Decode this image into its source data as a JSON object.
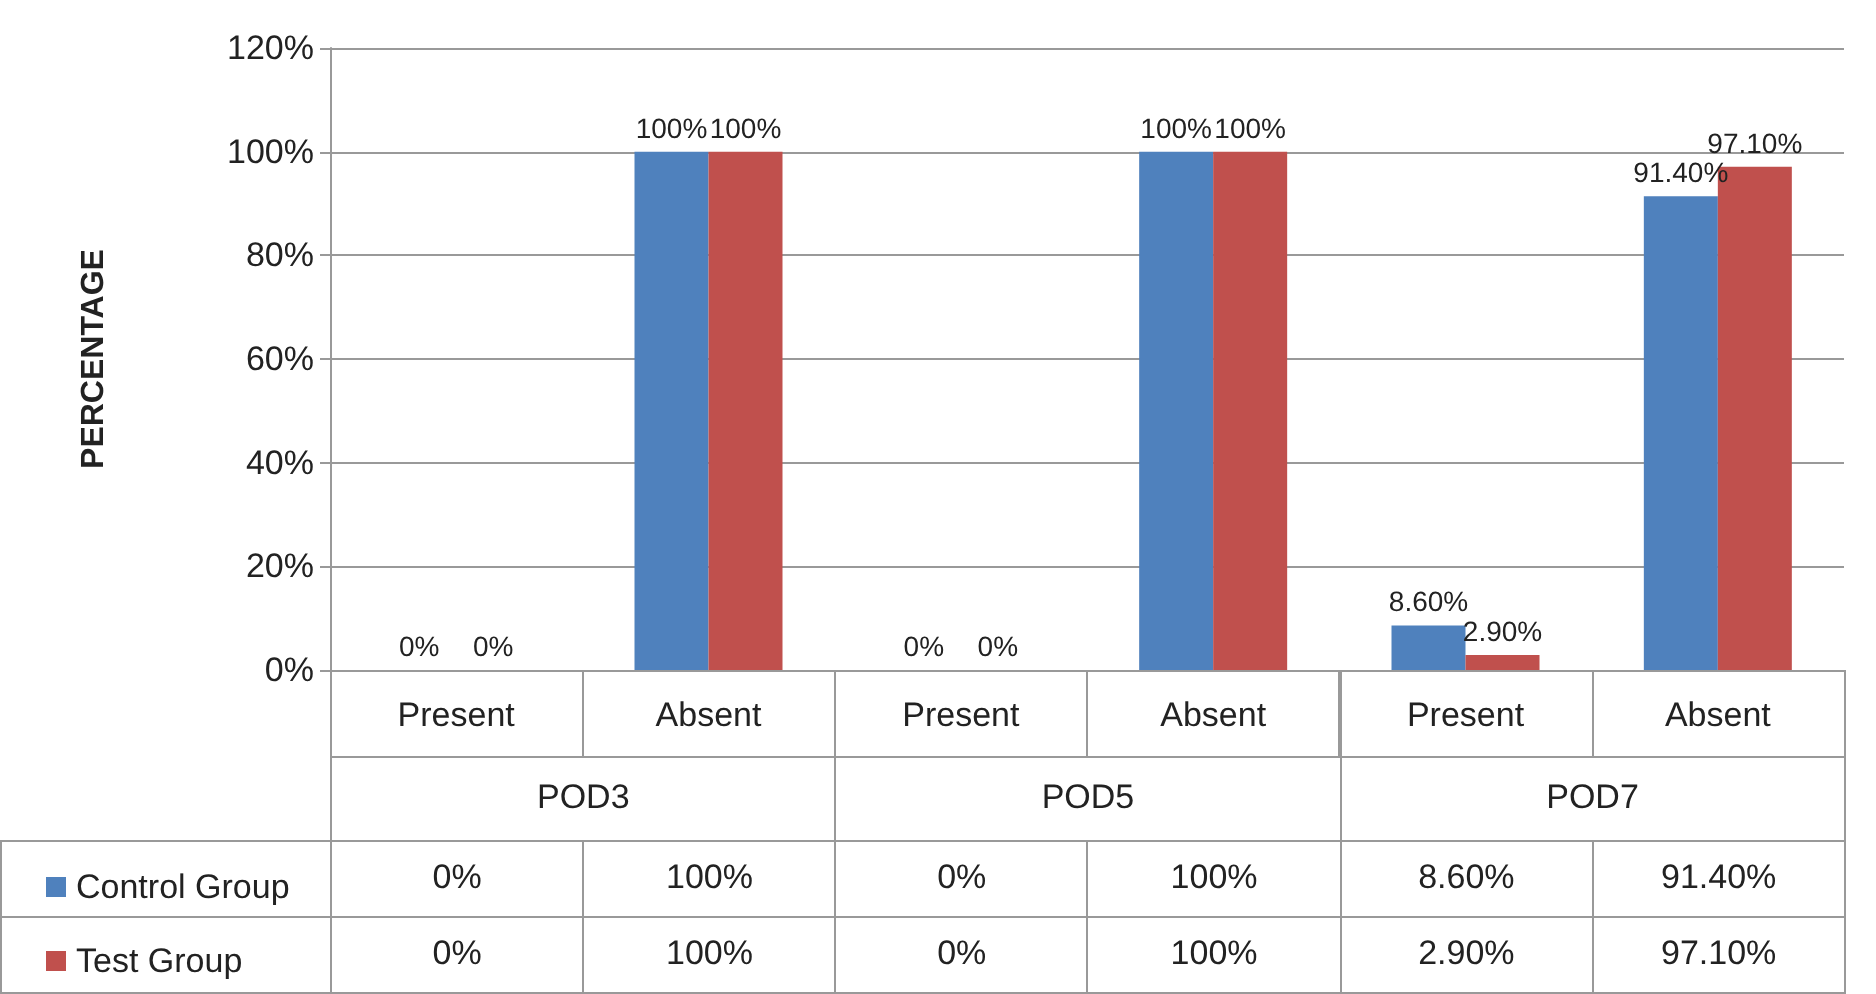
{
  "chart_data": {
    "type": "bar",
    "ylabel": "PERCENTAGE",
    "categories": [
      "Present",
      "Absent",
      "Present",
      "Absent",
      "Present",
      "Absent"
    ],
    "series": [
      {
        "name": "Control Group",
        "color": "#4f81bd",
        "values": [
          0,
          100,
          0,
          100,
          8.6,
          91.4
        ],
        "value_labels": [
          "0%",
          "100%",
          "0%",
          "100%",
          "8.60%",
          "91.40%"
        ]
      },
      {
        "name": "Test Group",
        "color": "#c0504d",
        "values": [
          0,
          100,
          0,
          100,
          2.9,
          97.1
        ],
        "value_labels": [
          "0%",
          "100%",
          "0%",
          "100%",
          "2.90%",
          "97.10%"
        ]
      }
    ],
    "annotations": [
      "POD3",
      "POD5",
      "POD7"
    ],
    "ylim": [
      0,
      120
    ],
    "yticks": [
      {
        "value": 0,
        "label": "0%"
      },
      {
        "value": 20,
        "label": "20%"
      },
      {
        "value": 40,
        "label": "40%"
      },
      {
        "value": 60,
        "label": "60%"
      },
      {
        "value": 80,
        "label": "80%"
      },
      {
        "value": 100,
        "label": "100%"
      },
      {
        "value": 120,
        "label": "120%"
      }
    ],
    "grid": "y",
    "legend": "bottom left"
  }
}
